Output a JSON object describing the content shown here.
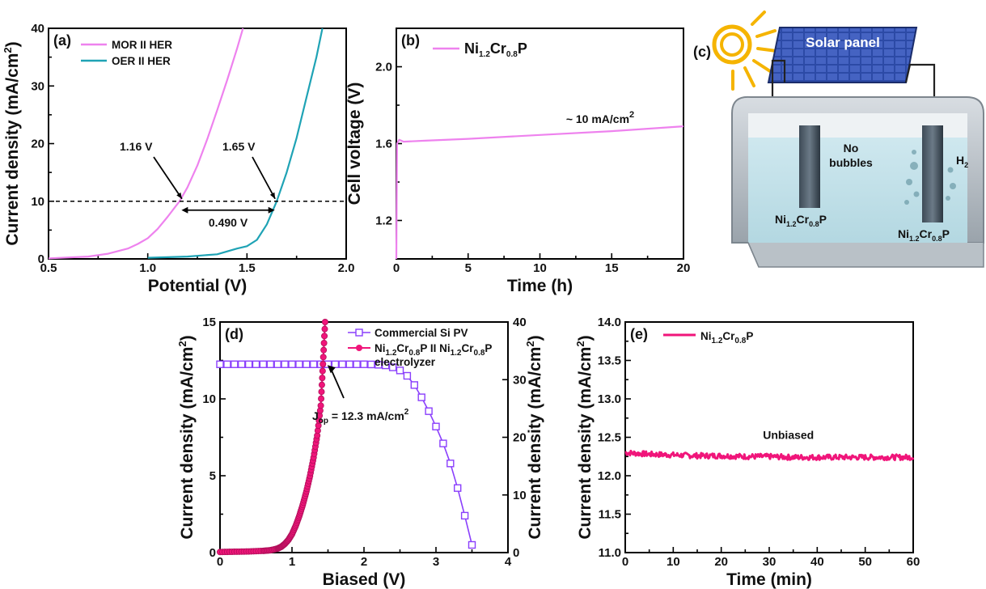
{
  "chart_data": [
    {
      "type": "line",
      "panel": "(a)",
      "xlabel": "Potential (V)",
      "ylabel": "Current density (mA/cm²)",
      "xlim": [
        0.5,
        2.0
      ],
      "ylim": [
        0,
        40
      ],
      "xticks": [
        "0.5",
        "1.0",
        "1.5",
        "2.0"
      ],
      "yticks": [
        "0",
        "10",
        "20",
        "30",
        "40"
      ],
      "legend_position": "top-left",
      "series": [
        {
          "name": "MOR II HER",
          "color": "#ee82ee",
          "x": [
            0.5,
            0.7,
            0.8,
            0.9,
            0.95,
            1.0,
            1.05,
            1.1,
            1.16,
            1.2,
            1.25,
            1.3,
            1.35,
            1.4,
            1.45,
            1.48
          ],
          "y": [
            0.1,
            0.4,
            0.9,
            1.8,
            2.6,
            3.6,
            5.2,
            7.3,
            10,
            12.4,
            16.2,
            20.8,
            25.8,
            31.0,
            36.5,
            40
          ]
        },
        {
          "name": "OER II HER",
          "color": "#1fa3b5",
          "x": [
            1.0,
            1.2,
            1.35,
            1.45,
            1.5,
            1.55,
            1.6,
            1.65,
            1.7,
            1.75,
            1.8,
            1.85,
            1.88
          ],
          "y": [
            0.2,
            0.4,
            0.8,
            1.8,
            2.2,
            3.3,
            6.0,
            10,
            15.0,
            21.0,
            28.0,
            35.0,
            40
          ]
        }
      ],
      "annotations": {
        "mor_v": "1.16 V",
        "oer_v": "1.65 V",
        "delta": "0.490 V",
        "ref_y": 10
      }
    },
    {
      "type": "line",
      "panel": "(b)",
      "xlabel": "Time (h)",
      "ylabel": "Cell voltage (V)",
      "xlim": [
        0,
        20
      ],
      "ylim": [
        1.0,
        2.2
      ],
      "xticks": [
        "0",
        "5",
        "10",
        "15",
        "20"
      ],
      "yticks": [
        "1.2",
        "1.6",
        "2.0"
      ],
      "series": [
        {
          "name": "Ni1.2Cr0.8P",
          "color": "#ee82ee",
          "x": [
            0,
            0.05,
            0.2,
            0.5,
            2,
            5,
            10,
            15,
            20
          ],
          "y": [
            1.0,
            1.6,
            1.62,
            1.61,
            1.615,
            1.625,
            1.645,
            1.665,
            1.69
          ]
        }
      ],
      "annotation": "~ 10 mA/cm"
    },
    {
      "type": "line",
      "panel": "(d)",
      "xlabel": "Biased (V)",
      "ylabel": "Current density (mA/cm²)",
      "ylabel_right": "Current density (mA/cm²)",
      "xlim": [
        0,
        4
      ],
      "ylim": [
        0,
        15
      ],
      "ylim_right": [
        0,
        40
      ],
      "xticks": [
        "0",
        "1",
        "2",
        "3",
        "4"
      ],
      "yticks": [
        "0",
        "5",
        "10",
        "15"
      ],
      "yticks_right": [
        "0",
        "10",
        "20",
        "30",
        "40"
      ],
      "series": [
        {
          "name": "Commercial Si PV",
          "color": "#8a3ffc",
          "marker": "square",
          "x": [
            0,
            0.1,
            0.2,
            0.3,
            0.4,
            0.5,
            0.6,
            0.7,
            0.8,
            0.9,
            1.0,
            1.1,
            1.2,
            1.3,
            1.4,
            1.5,
            1.6,
            1.7,
            1.8,
            1.9,
            2.0,
            2.1,
            2.2,
            2.3,
            2.4,
            2.5,
            2.6,
            2.7,
            2.8,
            2.9,
            3.0,
            3.1,
            3.2,
            3.3,
            3.4,
            3.5
          ],
          "y": [
            12.25,
            12.25,
            12.25,
            12.25,
            12.25,
            12.25,
            12.25,
            12.25,
            12.25,
            12.25,
            12.25,
            12.25,
            12.25,
            12.25,
            12.25,
            12.25,
            12.25,
            12.25,
            12.25,
            12.25,
            12.25,
            12.24,
            12.22,
            12.18,
            12.05,
            11.85,
            11.5,
            10.9,
            10.1,
            9.2,
            8.2,
            7.1,
            5.8,
            4.2,
            2.4,
            0.5
          ]
        },
        {
          "name": "Ni1.2Cr0.8P II Ni1.2Cr0.8P electrolyzer",
          "color": "#f0157a",
          "marker": "circle",
          "x": [
            0,
            0.2,
            0.4,
            0.6,
            0.7,
            0.8,
            0.85,
            0.9,
            0.95,
            1.0,
            1.05,
            1.1,
            1.15,
            1.2,
            1.25,
            1.3,
            1.35,
            1.4,
            1.43,
            1.46
          ],
          "y": [
            0.1,
            0.15,
            0.2,
            0.3,
            0.4,
            0.7,
            1.0,
            1.5,
            2.2,
            3.2,
            4.6,
            6.3,
            8.3,
            10.6,
            13.3,
            16.5,
            20.3,
            25.5,
            32.7,
            40
          ],
          "axis": "right"
        }
      ],
      "annotation": "J",
      "annotation_sub": "op",
      "annotation_rest": " = 12.3 mA/cm"
    },
    {
      "type": "line",
      "panel": "(e)",
      "xlabel": "Time (min)",
      "ylabel": "Current density (mA/cm²)",
      "xlim": [
        0,
        60
      ],
      "ylim": [
        11.0,
        14.0
      ],
      "xticks": [
        "0",
        "10",
        "20",
        "30",
        "40",
        "50",
        "60"
      ],
      "yticks": [
        "11.0",
        "11.5",
        "12.0",
        "12.5",
        "13.0",
        "13.5",
        "14.0"
      ],
      "series": [
        {
          "name": "Ni1.2Cr0.8P",
          "color": "#f0157a",
          "x": [
            0,
            5,
            10,
            15,
            20,
            25,
            30,
            35,
            40,
            45,
            50,
            55,
            60
          ],
          "y": [
            12.3,
            12.28,
            12.27,
            12.26,
            12.26,
            12.25,
            12.25,
            12.24,
            12.24,
            12.24,
            12.24,
            12.24,
            12.24
          ]
        }
      ],
      "annotation": "Unbiased"
    }
  ],
  "panel_c": {
    "label": "(c)",
    "solar_label": "Solar panel",
    "left_text_1": "No",
    "left_text_2": "bubbles",
    "h2_text": "H",
    "h2_sub": "2",
    "electrode_label": "Ni",
    "electrode_sub1": "1.2",
    "electrode_mid": "Cr",
    "electrode_sub2": "0.8",
    "electrode_end": "P"
  },
  "colors": {
    "mor": "#ee82ee",
    "oer": "#1fa3b5",
    "pv": "#8a3ffc",
    "electrolyzer": "#f0157a"
  }
}
